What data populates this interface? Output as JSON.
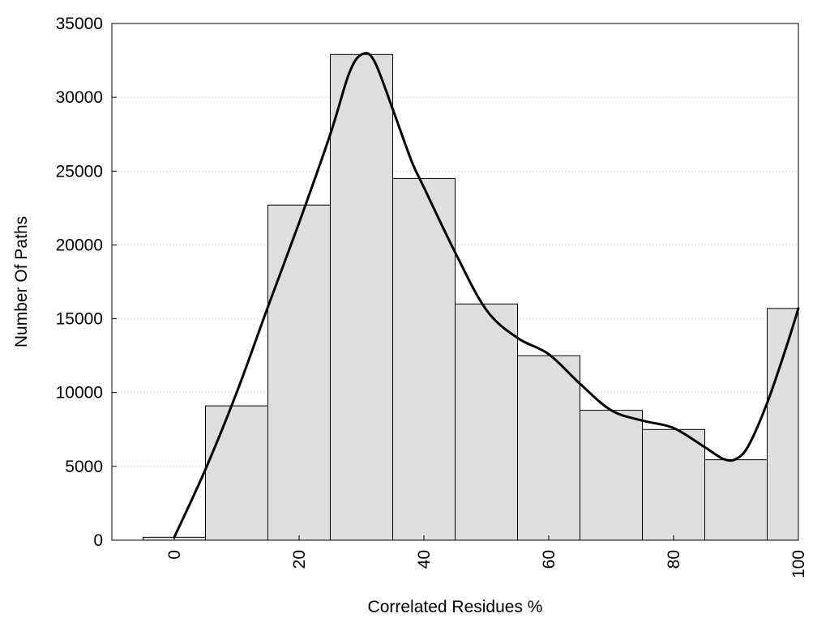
{
  "chart_data": {
    "type": "bar",
    "xlabel": "Correlated Residues %",
    "ylabel": "Number Of Paths",
    "xlim": [
      -10,
      100
    ],
    "ylim": [
      0,
      35000
    ],
    "bin_width": 10,
    "x_ticks": [
      0,
      20,
      40,
      60,
      80,
      100
    ],
    "y_ticks": [
      0,
      5000,
      10000,
      15000,
      20000,
      25000,
      30000,
      35000
    ],
    "grid": "horizontal dotted",
    "bar_color": "#dedede",
    "line_color": "#000000",
    "bars": [
      {
        "x": 0,
        "value": 200
      },
      {
        "x": 10,
        "value": 9100
      },
      {
        "x": 20,
        "value": 22700
      },
      {
        "x": 30,
        "value": 32900
      },
      {
        "x": 40,
        "value": 24500
      },
      {
        "x": 50,
        "value": 16000
      },
      {
        "x": 60,
        "value": 12500
      },
      {
        "x": 70,
        "value": 8800
      },
      {
        "x": 80,
        "value": 7500
      },
      {
        "x": 90,
        "value": 5450
      },
      {
        "x": 100,
        "value": 15700
      }
    ],
    "smooth_curve": {
      "x": [
        0,
        5,
        10,
        15,
        20,
        25,
        28,
        30,
        32,
        35,
        38,
        40,
        45,
        50,
        55,
        60,
        65,
        70,
        75,
        80,
        85,
        88,
        90,
        92,
        95,
        98,
        100
      ],
      "y": [
        200,
        4800,
        10000,
        15800,
        21500,
        27500,
        31600,
        32900,
        32500,
        29200,
        25700,
        23900,
        19500,
        15600,
        13700,
        12600,
        10600,
        8800,
        8100,
        7600,
        6300,
        5500,
        5500,
        6400,
        9300,
        13000,
        15700
      ]
    }
  }
}
